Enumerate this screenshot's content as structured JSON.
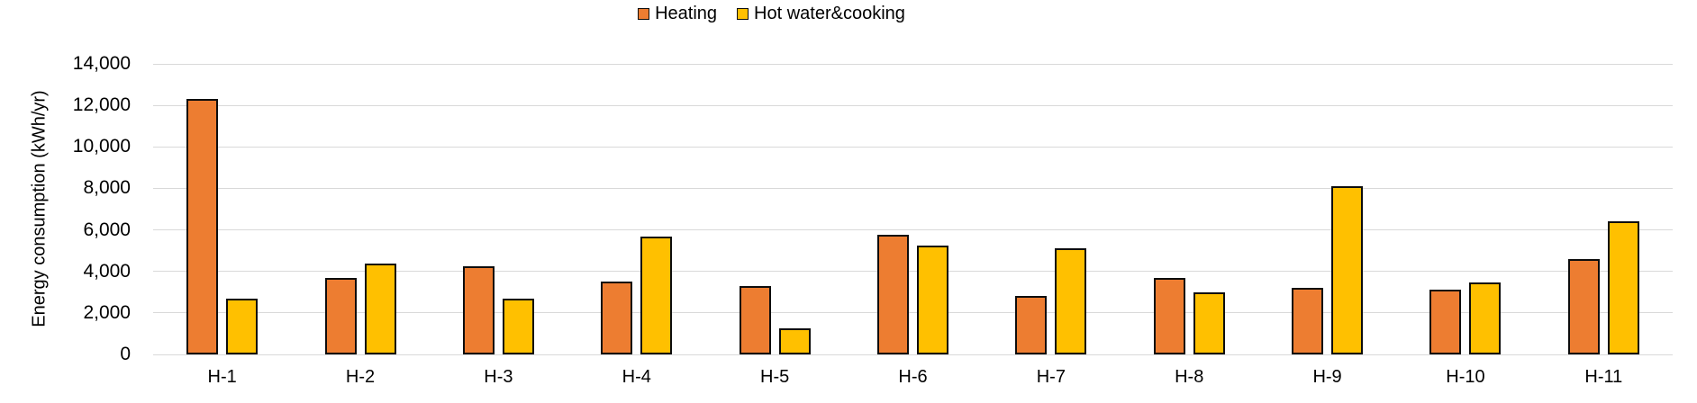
{
  "chart_data": {
    "type": "bar",
    "title": "",
    "categories": [
      "H-1",
      "H-2",
      "H-3",
      "H-4",
      "H-5",
      "H-6",
      "H-7",
      "H-8",
      "H-9",
      "H-10",
      "H-11"
    ],
    "series": [
      {
        "name": "Heating",
        "color": "#ED7D31",
        "values": [
          12300,
          3700,
          4250,
          3500,
          3300,
          5750,
          2800,
          3700,
          3200,
          3100,
          4600
        ]
      },
      {
        "name": "Hot water&cooking",
        "color": "#FFC000",
        "values": [
          2700,
          4400,
          2700,
          5700,
          1250,
          5250,
          5100,
          3000,
          8100,
          3450,
          6400
        ]
      }
    ],
    "xlabel": "",
    "ylabel": "Energy consumption (kWh/yr)",
    "ylim": [
      0,
      14000
    ],
    "yticks": [
      {
        "value": 0,
        "label": "0"
      },
      {
        "value": 2000,
        "label": "2,000"
      },
      {
        "value": 4000,
        "label": "4,000"
      },
      {
        "value": 6000,
        "label": "6,000"
      },
      {
        "value": 8000,
        "label": "8,000"
      },
      {
        "value": 10000,
        "label": "10,000"
      },
      {
        "value": 12000,
        "label": "12,000"
      },
      {
        "value": 14000,
        "label": "14,000"
      }
    ],
    "grid": true,
    "legend_position": "top-center",
    "colors": {
      "grid": "#d9d9d9",
      "bar_border": "#0d0d0d",
      "text": "#000000"
    }
  }
}
